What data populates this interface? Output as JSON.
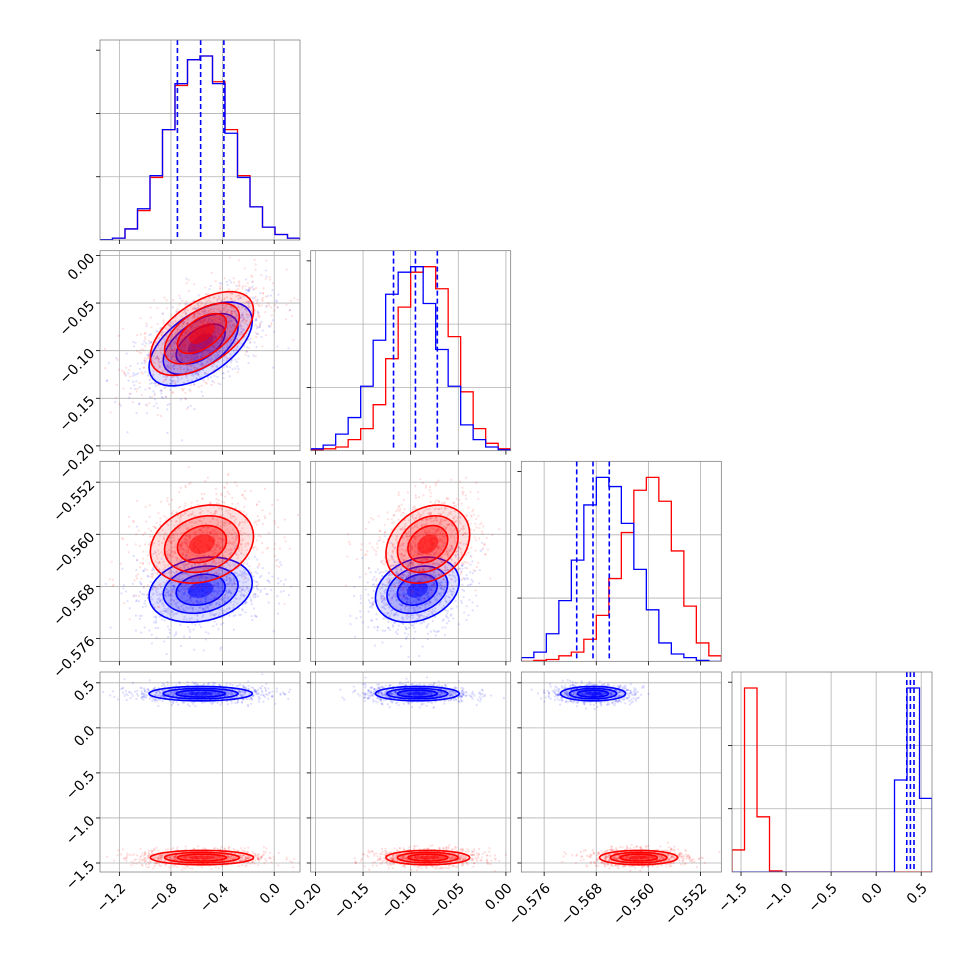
{
  "chart_data": {
    "type": "corner",
    "colors": {
      "blue": "#0000ff",
      "red": "#ff0000",
      "grid": "#b0b0b0",
      "frame": "#808080"
    },
    "params": [
      {
        "range": [
          -1.35,
          0.2
        ],
        "ticks": [
          -1.2,
          -0.8,
          -0.4,
          0.0
        ],
        "tick_labels": [
          "−1.2",
          "−0.8",
          "−0.4",
          "0.0"
        ]
      },
      {
        "range": [
          -0.205,
          0.005
        ],
        "ticks": [
          -0.2,
          -0.15,
          -0.1,
          -0.05,
          0.0
        ],
        "tick_labels": [
          "−0.20",
          "−0.15",
          "−0.10",
          "−0.05",
          "0.00"
        ]
      },
      {
        "range": [
          -0.5795,
          -0.5488
        ],
        "ticks": [
          -0.576,
          -0.568,
          -0.56,
          -0.552
        ],
        "tick_labels": [
          "−0.576",
          "−0.568",
          "−0.560",
          "−0.552"
        ]
      },
      {
        "range": [
          -1.6,
          0.62
        ],
        "ticks": [
          -1.5,
          -1.0,
          -0.5,
          0.0,
          0.5
        ],
        "tick_labels": [
          "−1.5",
          "−1.0",
          "−0.5",
          "0.0",
          "0.5"
        ]
      }
    ],
    "series": [
      {
        "color": "blue",
        "mean": [
          -0.57,
          -0.093,
          -0.5685,
          0.38
        ],
        "sd": [
          0.2,
          0.022,
          0.0025,
          0.04
        ],
        "quantiles": [
          [
            -0.75,
            -0.57,
            -0.39
          ],
          [
            -0.118,
            -0.095,
            -0.072
          ],
          [
            -0.571,
            -0.5685,
            -0.566
          ],
          [
            0.34,
            0.38,
            0.42
          ]
        ]
      },
      {
        "color": "red",
        "mean": [
          -0.56,
          -0.082,
          -0.5615,
          -1.44
        ],
        "sd": [
          0.2,
          0.022,
          0.003,
          0.04
        ]
      }
    ],
    "correlation": {
      "0-1": 0.55,
      "0-2": 0.2,
      "1-2": 0.25
    },
    "hist_blue": [
      [
        0.002,
        0.01,
        0.06,
        0.17,
        0.35,
        0.6,
        0.85,
        0.98,
        1.0,
        0.85,
        0.58,
        0.34,
        0.18,
        0.07,
        0.03,
        0.01
      ],
      [
        0.01,
        0.03,
        0.09,
        0.18,
        0.35,
        0.6,
        0.85,
        0.97,
        1.0,
        0.8,
        0.55,
        0.35,
        0.14,
        0.06,
        0.02,
        0.005
      ],
      [
        0.02,
        0.05,
        0.15,
        0.33,
        0.55,
        0.85,
        1.0,
        0.95,
        0.75,
        0.5,
        0.28,
        0.1,
        0.04,
        0.02,
        0.005,
        0.0
      ],
      [
        0.0,
        0.0,
        0.0,
        0.0,
        0.0,
        0.0,
        0.0,
        0.0,
        0.0,
        0.0,
        0.0,
        0.0,
        0.0,
        0.5,
        1.0,
        0.4
      ]
    ],
    "hist_red": [
      [
        0.002,
        0.01,
        0.06,
        0.16,
        0.34,
        0.6,
        0.84,
        0.98,
        1.0,
        0.86,
        0.6,
        0.35,
        0.18,
        0.07,
        0.03,
        0.01
      ],
      [
        0.003,
        0.01,
        0.02,
        0.06,
        0.12,
        0.25,
        0.5,
        0.78,
        0.97,
        1.0,
        0.88,
        0.62,
        0.32,
        0.12,
        0.04,
        0.01
      ],
      [
        0.0,
        0.005,
        0.01,
        0.03,
        0.05,
        0.12,
        0.25,
        0.45,
        0.7,
        0.93,
        1.0,
        0.87,
        0.6,
        0.3,
        0.1,
        0.03
      ],
      [
        0.12,
        1.0,
        0.3,
        0.006,
        0.0,
        0.0,
        0.0,
        0.0,
        0.0,
        0.0,
        0.0,
        0.0,
        0.0,
        0.0,
        0.0,
        0.0
      ]
    ]
  }
}
